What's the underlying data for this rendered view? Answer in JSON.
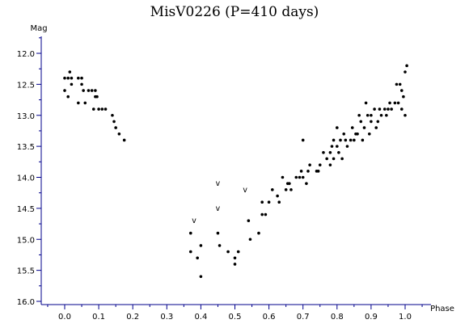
{
  "chart_data": {
    "type": "scatter",
    "title": "MisV0226 (P=410 days)",
    "xlabel": "Phase",
    "ylabel": "Mag",
    "xlim": [
      -0.09,
      1.0
    ],
    "ylim": [
      12.0,
      16.0
    ],
    "y_inverted": true,
    "grid": false,
    "legend": "none",
    "x_ticks": [
      0.0,
      0.1,
      0.2,
      0.3,
      0.4,
      0.5,
      0.6,
      0.7,
      0.8,
      0.9,
      1.0
    ],
    "x_tick_labels": [
      "0.0",
      "0.1",
      "0.2",
      "0.3",
      "0.4",
      "0.5",
      "0.6",
      "0.7",
      "0.8",
      "0.9",
      "1.0"
    ],
    "y_ticks": [
      12.0,
      12.5,
      13.0,
      13.5,
      14.0,
      14.5,
      15.0,
      15.5,
      16.0
    ],
    "y_tick_labels": [
      "12.0",
      "12.5",
      "13.0",
      "13.5",
      "14.0",
      "14.5",
      "15.0",
      "15.5",
      "16.0"
    ],
    "colors": {
      "points": "#000000",
      "axes": "#00008b",
      "text": "#000000",
      "background": "#ffffff"
    },
    "upper_limit_marker": "v",
    "points": [
      [
        0.0,
        12.4
      ],
      [
        0.0,
        12.6
      ],
      [
        0.01,
        12.4
      ],
      [
        0.01,
        12.7
      ],
      [
        0.015,
        12.3
      ],
      [
        0.02,
        12.4
      ],
      [
        0.02,
        12.5
      ],
      [
        0.04,
        12.4
      ],
      [
        0.04,
        12.8
      ],
      [
        0.05,
        12.4
      ],
      [
        0.05,
        12.5
      ],
      [
        0.055,
        12.6
      ],
      [
        0.06,
        12.8
      ],
      [
        0.07,
        12.6
      ],
      [
        0.08,
        12.6
      ],
      [
        0.085,
        12.9
      ],
      [
        0.09,
        12.7
      ],
      [
        0.09,
        12.6
      ],
      [
        0.095,
        12.7
      ],
      [
        0.1,
        12.9
      ],
      [
        0.11,
        12.9
      ],
      [
        0.12,
        12.9
      ],
      [
        0.14,
        13.0
      ],
      [
        0.145,
        13.1
      ],
      [
        0.15,
        13.2
      ],
      [
        0.16,
        13.3
      ],
      [
        0.175,
        13.4
      ],
      [
        0.37,
        14.9
      ],
      [
        0.37,
        15.2
      ],
      [
        0.39,
        15.3
      ],
      [
        0.4,
        15.1
      ],
      [
        0.4,
        15.6
      ],
      [
        0.45,
        14.9
      ],
      [
        0.455,
        15.1
      ],
      [
        0.48,
        15.2
      ],
      [
        0.5,
        15.3
      ],
      [
        0.5,
        15.4
      ],
      [
        0.51,
        15.2
      ],
      [
        0.54,
        14.7
      ],
      [
        0.545,
        15.0
      ],
      [
        0.57,
        14.9
      ],
      [
        0.58,
        14.4
      ],
      [
        0.58,
        14.6
      ],
      [
        0.59,
        14.6
      ],
      [
        0.6,
        14.4
      ],
      [
        0.61,
        14.2
      ],
      [
        0.625,
        14.3
      ],
      [
        0.63,
        14.4
      ],
      [
        0.64,
        14.0
      ],
      [
        0.65,
        14.2
      ],
      [
        0.655,
        14.1
      ],
      [
        0.66,
        14.1
      ],
      [
        0.665,
        14.2
      ],
      [
        0.68,
        14.0
      ],
      [
        0.69,
        14.0
      ],
      [
        0.695,
        13.9
      ],
      [
        0.7,
        14.0
      ],
      [
        0.7,
        13.4
      ],
      [
        0.71,
        14.1
      ],
      [
        0.715,
        13.9
      ],
      [
        0.72,
        13.8
      ],
      [
        0.74,
        13.9
      ],
      [
        0.745,
        13.9
      ],
      [
        0.75,
        13.8
      ],
      [
        0.76,
        13.6
      ],
      [
        0.77,
        13.7
      ],
      [
        0.78,
        13.6
      ],
      [
        0.78,
        13.8
      ],
      [
        0.785,
        13.5
      ],
      [
        0.79,
        13.4
      ],
      [
        0.79,
        13.7
      ],
      [
        0.8,
        13.5
      ],
      [
        0.8,
        13.2
      ],
      [
        0.805,
        13.6
      ],
      [
        0.81,
        13.4
      ],
      [
        0.815,
        13.7
      ],
      [
        0.82,
        13.3
      ],
      [
        0.825,
        13.4
      ],
      [
        0.83,
        13.5
      ],
      [
        0.84,
        13.4
      ],
      [
        0.845,
        13.2
      ],
      [
        0.85,
        13.4
      ],
      [
        0.855,
        13.3
      ],
      [
        0.86,
        13.3
      ],
      [
        0.865,
        13.0
      ],
      [
        0.87,
        13.1
      ],
      [
        0.875,
        13.4
      ],
      [
        0.88,
        13.2
      ],
      [
        0.885,
        12.8
      ],
      [
        0.89,
        13.0
      ],
      [
        0.895,
        13.3
      ],
      [
        0.9,
        13.1
      ],
      [
        0.9,
        13.0
      ],
      [
        0.91,
        12.9
      ],
      [
        0.915,
        13.2
      ],
      [
        0.92,
        13.1
      ],
      [
        0.925,
        12.9
      ],
      [
        0.93,
        13.0
      ],
      [
        0.94,
        12.9
      ],
      [
        0.945,
        13.0
      ],
      [
        0.95,
        12.9
      ],
      [
        0.955,
        12.8
      ],
      [
        0.96,
        12.9
      ],
      [
        0.97,
        12.8
      ],
      [
        0.975,
        12.5
      ],
      [
        0.98,
        12.8
      ],
      [
        0.985,
        12.5
      ],
      [
        0.99,
        12.6
      ],
      [
        0.99,
        12.9
      ],
      [
        0.995,
        12.7
      ],
      [
        1.0,
        13.0
      ],
      [
        1.0,
        12.3
      ],
      [
        1.005,
        12.2
      ]
    ],
    "upper_limits": [
      [
        0.38,
        14.7
      ],
      [
        0.45,
        14.1
      ],
      [
        0.45,
        14.5
      ],
      [
        0.53,
        14.2
      ]
    ]
  }
}
